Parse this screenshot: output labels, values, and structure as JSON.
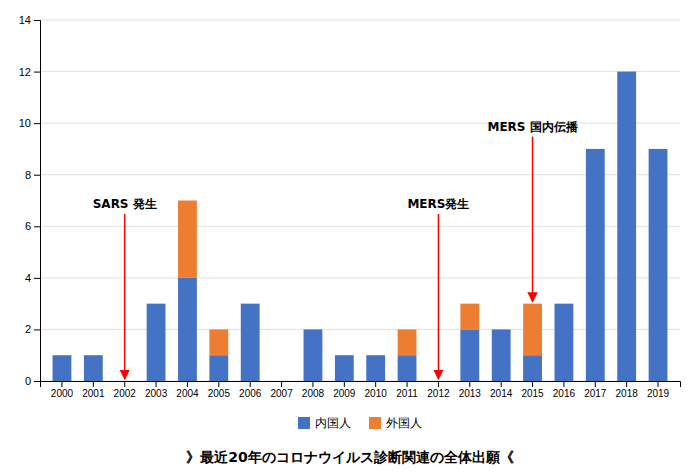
{
  "chart_data": {
    "type": "bar",
    "stacked": true,
    "title": "》最近20年のコロナウイルス診断関連の全体出願《",
    "categories": [
      "2000",
      "2001",
      "2002",
      "2003",
      "2004",
      "2005",
      "2006",
      "2007",
      "2008",
      "2009",
      "2010",
      "2011",
      "2012",
      "2013",
      "2014",
      "2015",
      "2016",
      "2017",
      "2018",
      "2019"
    ],
    "series": [
      {
        "name": "内国人",
        "color": "#4472C4",
        "values": [
          1,
          1,
          0,
          3,
          4,
          1,
          3,
          0,
          2,
          1,
          1,
          1,
          0,
          2,
          2,
          1,
          3,
          9,
          12,
          9
        ]
      },
      {
        "name": "外国人",
        "color": "#ED7D31",
        "values": [
          0,
          0,
          0,
          0,
          3,
          1,
          0,
          0,
          0,
          0,
          0,
          1,
          0,
          1,
          0,
          2,
          0,
          0,
          0,
          0
        ]
      }
    ],
    "ylim": [
      0,
      14
    ],
    "yticks": [
      0,
      2,
      4,
      6,
      8,
      10,
      12,
      14
    ],
    "grid": true,
    "legend": "bottom",
    "annotations": [
      {
        "text": "SARS 発生",
        "x": "2002"
      },
      {
        "text": "MERS発生",
        "x": "2012"
      },
      {
        "text": "MERS 国内伝播",
        "x": "2015"
      }
    ]
  }
}
